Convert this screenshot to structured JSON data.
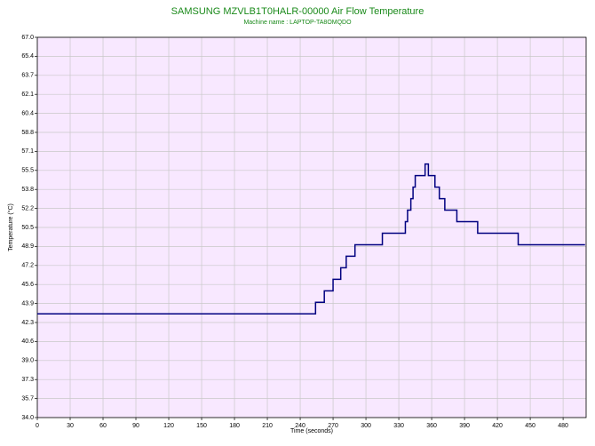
{
  "chart_data": {
    "type": "line",
    "step": true,
    "title": "SAMSUNG MZVLB1T0HALR-00000 Air Flow Temperature",
    "subtitle": "Machine name : LAPTOP-TA8OMQDO",
    "x_label": "Time (seconds)",
    "y_label": "Temperature (°C)",
    "x": [
      0,
      254,
      262,
      270,
      277,
      282,
      290,
      315,
      336,
      338,
      341,
      343,
      345,
      354,
      357,
      363,
      367,
      372,
      383,
      402,
      439,
      500
    ],
    "series": [
      {
        "color": "#000080",
        "values": [
          43,
          44,
          45,
          46,
          47,
          48,
          49,
          50,
          51,
          52,
          53,
          54,
          55,
          56,
          55,
          54,
          53,
          52,
          51,
          50,
          49,
          49
        ]
      }
    ],
    "xlim": [
      0,
      501
    ],
    "xticks": [
      0,
      30,
      60,
      90,
      120,
      150,
      180,
      210,
      240,
      270,
      300,
      330,
      360,
      390,
      420,
      450,
      480
    ],
    "ylim": [
      34,
      67
    ],
    "yticks": [
      {
        "value": 34,
        "label": "34.0"
      },
      {
        "value": 35.65,
        "label": "35.7"
      },
      {
        "value": 37.3,
        "label": "37.3"
      },
      {
        "value": 38.95,
        "label": "39.0"
      },
      {
        "value": 40.6,
        "label": "40.6"
      },
      {
        "value": 42.25,
        "label": "42.3"
      },
      {
        "value": 43.9,
        "label": "43.9"
      },
      {
        "value": 45.55,
        "label": "45.6"
      },
      {
        "value": 47.2,
        "label": "47.2"
      },
      {
        "value": 48.85,
        "label": "48.9"
      },
      {
        "value": 50.5,
        "label": "50.5"
      },
      {
        "value": 52.15,
        "label": "52.2"
      },
      {
        "value": 53.8,
        "label": "53.8"
      },
      {
        "value": 55.45,
        "label": "55.5"
      },
      {
        "value": 57.1,
        "label": "57.1"
      },
      {
        "value": 58.75,
        "label": "58.8"
      },
      {
        "value": 60.4,
        "label": "60.4"
      },
      {
        "value": 62.05,
        "label": "62.1"
      },
      {
        "value": 63.7,
        "label": "63.7"
      },
      {
        "value": 65.35,
        "label": "65.4"
      },
      {
        "value": 67,
        "label": "67.0"
      }
    ],
    "grid": true,
    "background": "#f8e8ff",
    "title_color": "#1a8a1a"
  }
}
